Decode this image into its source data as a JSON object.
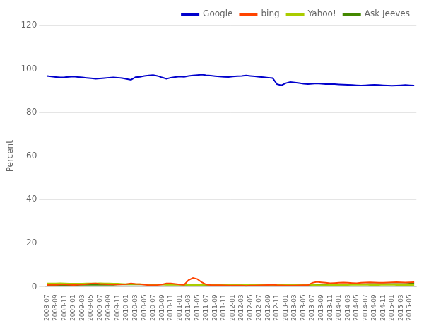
{
  "chart_data": {
    "type": "line",
    "ylabel": "Percent",
    "ylim": [
      0,
      120
    ],
    "yticks": [
      0,
      20,
      40,
      60,
      80,
      100,
      120
    ],
    "grid": true,
    "legend": "upper right",
    "categories": [
      "2008-07",
      null,
      "2008-09",
      null,
      "2008-11",
      null,
      "2009-01",
      null,
      "2009-03",
      null,
      "2009-05",
      null,
      "2009-07",
      null,
      "2009-09",
      null,
      "2009-11",
      null,
      "2010-01",
      null,
      "2010-03",
      null,
      "2010-05",
      null,
      "2010-07",
      null,
      "2010-09",
      null,
      "2010-11",
      null,
      "2011-01",
      null,
      "2011-03",
      null,
      "2011-05",
      null,
      "2011-07",
      null,
      "2011-09",
      null,
      "2011-11",
      null,
      "2012-01",
      null,
      "2012-03",
      null,
      "2012-05",
      null,
      "2012-07",
      null,
      "2012-09",
      null,
      "2012-11",
      null,
      "2013-01",
      null,
      "2013-03",
      null,
      "2013-05",
      null,
      "2013-07",
      null,
      "2013-09",
      null,
      "2013-11",
      null,
      "2014-01",
      null,
      "2014-03",
      null,
      "2014-05",
      null,
      "2014-07",
      null,
      "2014-09",
      null,
      "2014-11",
      null,
      "2015-01",
      null,
      "2015-03",
      null,
      "2015-05",
      null
    ],
    "series": [
      {
        "name": "Google",
        "color": "#0000cc",
        "values": [
          96.8,
          96.5,
          96.3,
          96.1,
          96.2,
          96.4,
          96.5,
          96.3,
          96.1,
          95.9,
          95.7,
          95.5,
          95.6,
          95.8,
          96.0,
          96.1,
          96.0,
          95.8,
          95.4,
          95.0,
          96.2,
          96.4,
          96.8,
          97.0,
          97.2,
          96.8,
          96.1,
          95.5,
          96.0,
          96.3,
          96.5,
          96.4,
          96.8,
          97.0,
          97.2,
          97.4,
          97.1,
          96.9,
          96.7,
          96.5,
          96.4,
          96.3,
          96.5,
          96.7,
          96.8,
          97.0,
          96.8,
          96.6,
          96.4,
          96.2,
          96.0,
          95.8,
          93.0,
          92.5,
          93.5,
          94.0,
          93.8,
          93.5,
          93.2,
          93.0,
          93.2,
          93.4,
          93.2,
          93.0,
          93.1,
          93.0,
          92.9,
          92.8,
          92.7,
          92.6,
          92.5,
          92.4,
          92.5,
          92.6,
          92.7,
          92.6,
          92.5,
          92.4,
          92.3,
          92.4,
          92.5,
          92.6,
          92.5,
          92.4
        ]
      },
      {
        "name": "bing",
        "color": "#ff4400",
        "values": [
          0.8,
          0.9,
          0.9,
          1.0,
          1.0,
          0.9,
          0.8,
          0.9,
          1.0,
          1.2,
          1.4,
          1.5,
          1.3,
          1.2,
          1.1,
          1.0,
          1.0,
          1.1,
          1.2,
          1.5,
          1.3,
          1.2,
          0.9,
          0.7,
          0.7,
          0.8,
          1.0,
          1.5,
          1.5,
          1.3,
          1.0,
          0.9,
          3.0,
          4.0,
          3.5,
          2.0,
          1.0,
          0.8,
          0.7,
          0.7,
          0.6,
          0.5,
          0.5,
          0.5,
          0.5,
          0.4,
          0.5,
          0.5,
          0.6,
          0.7,
          0.8,
          0.9,
          0.7,
          0.6,
          0.5,
          0.5,
          0.5,
          0.6,
          0.7,
          0.8,
          1.8,
          2.2,
          2.0,
          1.8,
          1.6,
          1.7,
          1.8,
          1.9,
          1.8,
          1.7,
          1.6,
          1.8,
          1.9,
          2.0,
          1.9,
          1.8,
          1.8,
          1.9,
          2.0,
          2.1,
          2.0,
          1.9,
          2.0,
          2.1
        ]
      },
      {
        "name": "Yahoo!",
        "color": "#aacc00",
        "values": [
          1.5,
          1.5,
          1.5,
          1.6,
          1.5,
          1.4,
          1.4,
          1.4,
          1.4,
          1.5,
          1.5,
          1.5,
          1.6,
          1.5,
          1.5,
          1.4,
          1.4,
          1.3,
          1.2,
          1.2,
          1.2,
          1.2,
          1.1,
          1.0,
          1.0,
          1.0,
          1.0,
          0.9,
          0.9,
          0.9,
          0.9,
          0.9,
          0.8,
          0.8,
          0.8,
          0.8,
          0.9,
          0.9,
          0.9,
          1.0,
          1.0,
          1.0,
          0.9,
          0.9,
          0.9,
          0.8,
          0.8,
          0.8,
          0.8,
          0.8,
          0.9,
          0.9,
          0.9,
          1.0,
          1.0,
          1.0,
          1.0,
          1.0,
          1.0,
          0.9,
          0.8,
          0.7,
          0.7,
          0.7,
          0.8,
          0.8,
          0.8,
          0.8,
          0.8,
          0.9,
          0.9,
          0.9,
          0.9,
          0.8,
          0.8,
          0.8,
          0.9,
          0.9,
          0.9,
          0.8,
          0.8,
          0.8,
          0.8,
          0.8
        ]
      },
      {
        "name": "Ask Jeeves",
        "color": "#448800",
        "values": [
          0.5,
          0.6,
          0.7,
          0.7,
          0.8,
          0.8,
          0.8,
          0.8,
          0.9,
          0.9,
          0.9,
          0.9,
          0.9,
          0.9,
          0.9,
          0.9,
          1.0,
          1.0,
          1.0,
          1.0,
          1.0,
          1.0,
          1.0,
          1.1,
          1.1,
          1.1,
          1.0,
          1.0,
          1.0,
          1.0,
          1.0,
          0.9,
          0.9,
          0.9,
          0.9,
          0.9,
          0.8,
          0.8,
          0.8,
          0.8,
          0.8,
          0.8,
          0.8,
          0.8,
          0.7,
          0.7,
          0.7,
          0.7,
          0.7,
          0.7,
          0.7,
          0.7,
          0.7,
          0.7,
          0.7,
          0.7,
          0.7,
          0.7,
          0.7,
          0.7,
          0.8,
          0.8,
          0.8,
          0.8,
          0.9,
          1.0,
          1.0,
          1.0,
          1.0,
          1.1,
          1.2,
          1.2,
          1.2,
          1.3,
          1.3,
          1.3,
          1.3,
          1.3,
          1.3,
          1.3,
          1.3,
          1.3,
          1.4,
          1.5
        ]
      }
    ]
  }
}
